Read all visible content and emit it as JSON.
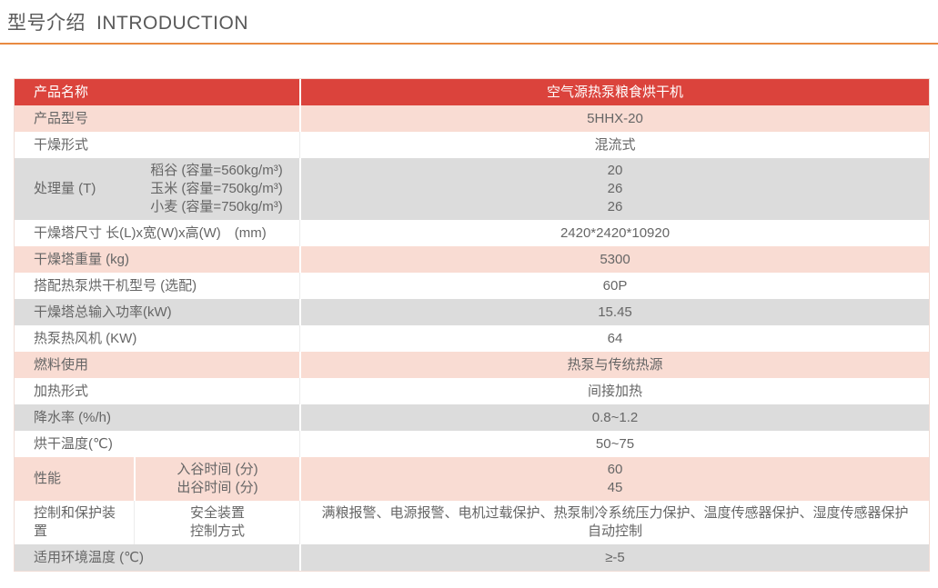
{
  "header": {
    "title_zh": "型号介绍",
    "title_en": "INTRODUCTION"
  },
  "colors": {
    "accent_rule": "#E98A41",
    "table_header_bg": "#DB433C",
    "row_pink": "#F9DCD3",
    "row_gray": "#DCDCDC",
    "row_white": "#FFFFFF",
    "text": "#666666",
    "header_text": "#FFFFFF"
  },
  "table": {
    "header_row": {
      "label": "产品名称",
      "value": "空气源热泵粮食烘干机"
    },
    "rows": [
      {
        "tone": "pink",
        "layout": "cols2",
        "label": "产品型号",
        "values": [
          "5HHX-20"
        ]
      },
      {
        "tone": "white",
        "layout": "cols2",
        "label": "干燥形式",
        "values": [
          "混流式"
        ]
      },
      {
        "tone": "gray",
        "layout": "cols3",
        "merged": true,
        "label": "处理量 (T)",
        "sublabels": [
          "稻谷 (容量=560kg/m³)",
          "玉米 (容量=750kg/m³)",
          "小麦 (容量=750kg/m³)"
        ],
        "values": [
          "20",
          "26",
          "26"
        ]
      },
      {
        "tone": "white",
        "layout": "cols2",
        "label": "干燥塔尺寸 长(L)x宽(W)x高(W)　(mm)",
        "values": [
          "2420*2420*10920"
        ]
      },
      {
        "tone": "pink",
        "layout": "cols2",
        "label": "干燥塔重量 (kg)",
        "values": [
          "5300"
        ]
      },
      {
        "tone": "white",
        "layout": "cols2",
        "label": "搭配热泵烘干机型号 (选配)",
        "values": [
          "60P"
        ]
      },
      {
        "tone": "gray",
        "layout": "cols2",
        "label": "干燥塔总输入功率(kW)",
        "values": [
          "15.45"
        ]
      },
      {
        "tone": "white",
        "layout": "cols2",
        "label": "热泵热风机 (KW)",
        "values": [
          "64"
        ]
      },
      {
        "tone": "pink",
        "layout": "cols2",
        "label": "燃料使用",
        "values": [
          "热泵与传统热源"
        ]
      },
      {
        "tone": "white",
        "layout": "cols2",
        "label": "加热形式",
        "values": [
          "间接加热"
        ]
      },
      {
        "tone": "gray",
        "layout": "cols2",
        "label": "降水率 (%/h)",
        "values": [
          "0.8~1.2"
        ]
      },
      {
        "tone": "white",
        "layout": "cols2",
        "label": "烘干温度(℃)",
        "values": [
          "50~75"
        ]
      },
      {
        "tone": "pink",
        "layout": "cols3",
        "label": "性能",
        "sublabels": [
          "入谷时间 (分)",
          "出谷时间 (分)"
        ],
        "values": [
          "60",
          "45"
        ]
      },
      {
        "tone": "white",
        "layout": "cols3",
        "label": "控制和保护装置",
        "sublabels": [
          "安全装置",
          "控制方式"
        ],
        "values": [
          "满粮报警、电源报警、电机过载保护、热泵制冷系统压力保护、温度传感器保护、湿度传感器保护",
          "自动控制"
        ]
      },
      {
        "tone": "gray",
        "layout": "cols2",
        "label": "适用环境温度 (℃)",
        "values": [
          "≥-5"
        ]
      }
    ]
  }
}
